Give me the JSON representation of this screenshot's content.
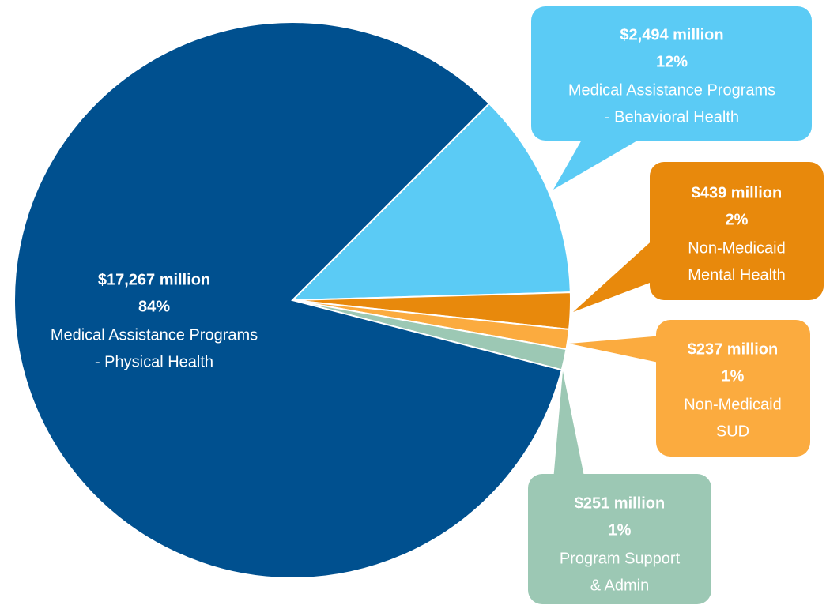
{
  "chart_data": {
    "type": "pie",
    "categories": [
      [
        "Medical Assistance Programs",
        "- Behavioral Health"
      ],
      [
        "Non-Medicaid",
        "Mental Health"
      ],
      [
        "Non-Medicaid",
        "SUD"
      ],
      [
        "Program Support",
        "& Admin"
      ],
      [
        "Medical Assistance Programs",
        "- Physical Health"
      ]
    ],
    "values": [
      2494,
      439,
      237,
      251,
      17267
    ],
    "value_labels": [
      "$2,494 million",
      "$439 million",
      "$237 million",
      "$251 million",
      "$17,267 million"
    ],
    "percents": [
      12,
      2,
      1,
      1,
      84
    ],
    "percent_labels": [
      "12%",
      "2%",
      "1%",
      "1%",
      "84%"
    ],
    "colors": [
      "#5bcbf5",
      "#e8890c",
      "#fbab3f",
      "#9cc8b4",
      "#00508f"
    ]
  }
}
